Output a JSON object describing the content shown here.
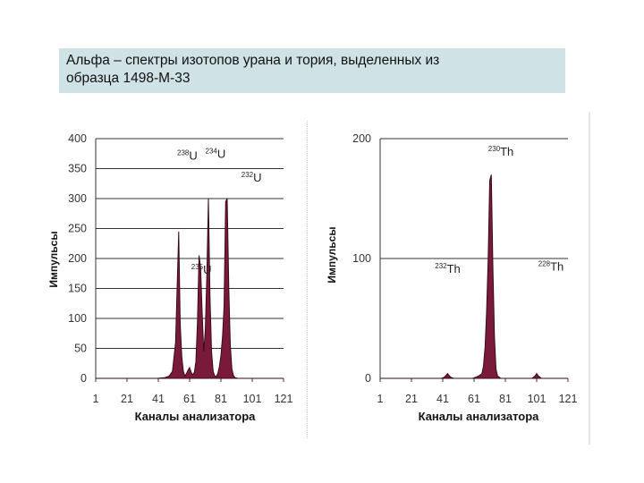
{
  "title": {
    "line1": "Альфа – спектры изотопов урана и тория, выделенных из",
    "line2": "образца 1498-М-33"
  },
  "colors": {
    "fill": "#7a1a3a",
    "stroke": "#3a0a18",
    "grid": "#333333",
    "title_bg": "#cfe3e6"
  },
  "chart_data": [
    {
      "type": "area",
      "title": "",
      "xlabel": "Каналы анализатора",
      "ylabel": "Импульсы",
      "xlim": [
        1,
        121
      ],
      "ylim": [
        0,
        400
      ],
      "x_ticks": [
        "1",
        "21",
        "41",
        "61",
        "81",
        "101",
        "121"
      ],
      "y_ticks": [
        "0",
        "50",
        "100",
        "150",
        "200",
        "250",
        "300",
        "350",
        "400"
      ],
      "grid": "horizontal",
      "annotations": [
        {
          "mass": "238",
          "symbol": "U",
          "x": 53,
          "y": 365
        },
        {
          "mass": "234",
          "symbol": "U",
          "x": 71,
          "y": 368
        },
        {
          "mass": "232",
          "symbol": "U",
          "x": 94,
          "y": 328
        },
        {
          "mass": "235",
          "symbol": "U",
          "x": 62,
          "y": 175
        }
      ],
      "series": [
        {
          "values": [
            [
              1,
              0
            ],
            [
              20,
              0
            ],
            [
              40,
              0
            ],
            [
              45,
              1
            ],
            [
              48,
              4
            ],
            [
              50,
              12
            ],
            [
              51,
              35
            ],
            [
              52,
              60
            ],
            [
              53,
              150
            ],
            [
              54,
              245
            ],
            [
              55,
              90
            ],
            [
              56,
              35
            ],
            [
              57,
              12
            ],
            [
              58,
              4
            ],
            [
              59,
              8
            ],
            [
              60,
              14
            ],
            [
              61,
              18
            ],
            [
              62,
              10
            ],
            [
              63,
              6
            ],
            [
              64,
              10
            ],
            [
              65,
              28
            ],
            [
              66,
              95
            ],
            [
              67,
              205
            ],
            [
              68,
              185
            ],
            [
              69,
              110
            ],
            [
              70,
              45
            ],
            [
              71,
              80
            ],
            [
              72,
              175
            ],
            [
              73,
              300
            ],
            [
              74,
              135
            ],
            [
              75,
              45
            ],
            [
              76,
              12
            ],
            [
              77,
              4
            ],
            [
              78,
              3
            ],
            [
              79,
              8
            ],
            [
              80,
              20
            ],
            [
              81,
              38
            ],
            [
              82,
              70
            ],
            [
              83,
              120
            ],
            [
              84,
              295
            ],
            [
              85,
              300
            ],
            [
              86,
              150
            ],
            [
              87,
              55
            ],
            [
              88,
              15
            ],
            [
              89,
              5
            ],
            [
              90,
              1
            ],
            [
              92,
              0
            ],
            [
              121,
              0
            ]
          ]
        }
      ]
    },
    {
      "type": "area",
      "title": "",
      "xlabel": "Каналы анализатора",
      "ylabel": "Импульсы",
      "xlim": [
        1,
        121
      ],
      "ylim": [
        0,
        200
      ],
      "x_ticks": [
        "1",
        "21",
        "41",
        "61",
        "81",
        "101",
        "121"
      ],
      "y_ticks": [
        "0",
        "100",
        "200"
      ],
      "grid": "horizontal",
      "annotations": [
        {
          "mass": "230",
          "symbol": "Th",
          "x": 70,
          "y": 186
        },
        {
          "mass": "232",
          "symbol": "Th",
          "x": 36,
          "y": 88
        },
        {
          "mass": "228",
          "symbol": "Th",
          "x": 102,
          "y": 90
        }
      ],
      "series": [
        {
          "values": [
            [
              1,
              0
            ],
            [
              40,
              0
            ],
            [
              42,
              1
            ],
            [
              44,
              4
            ],
            [
              46,
              1
            ],
            [
              48,
              0
            ],
            [
              60,
              0
            ],
            [
              62,
              1
            ],
            [
              64,
              2
            ],
            [
              66,
              4
            ],
            [
              67,
              10
            ],
            [
              68,
              26
            ],
            [
              69,
              55
            ],
            [
              70,
              100
            ],
            [
              71,
              165
            ],
            [
              72,
              170
            ],
            [
              73,
              95
            ],
            [
              74,
              35
            ],
            [
              75,
              8
            ],
            [
              76,
              2
            ],
            [
              78,
              0
            ],
            [
              98,
              0
            ],
            [
              100,
              2
            ],
            [
              101,
              4
            ],
            [
              102,
              2
            ],
            [
              104,
              0
            ],
            [
              121,
              0
            ]
          ]
        }
      ]
    }
  ]
}
